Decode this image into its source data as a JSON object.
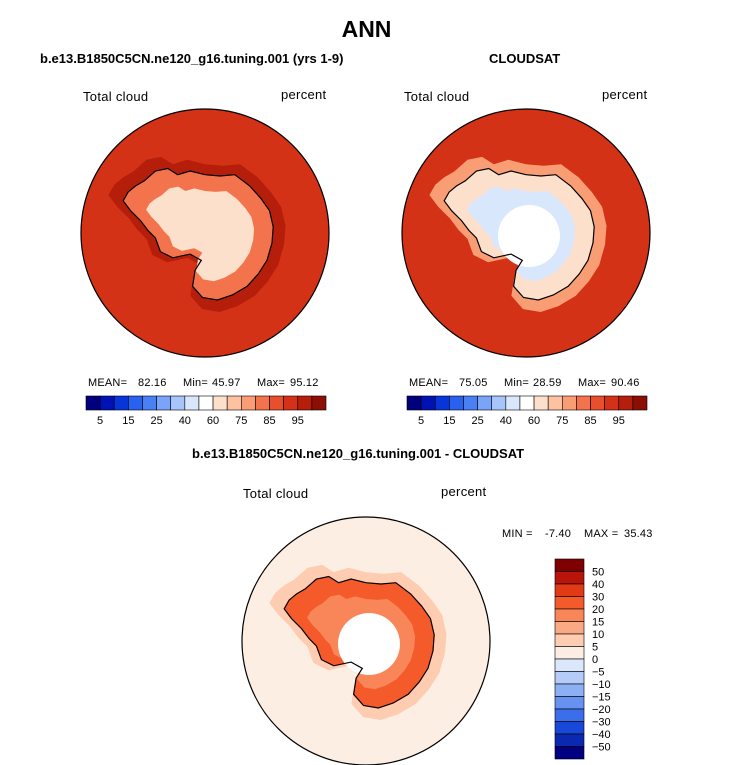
{
  "chart_data": {
    "type": "heatmap",
    "main_title": "ANN",
    "diff_title": "b.e13.B1850C5CN.ne120_g16.tuning.001 - CLOUDSAT",
    "panels": [
      {
        "id": "model",
        "title": "b.e13.B1850C5CN.ne120_g16.tuning.001 (yrs 1-9)",
        "variable": "Total cloud",
        "units": "percent",
        "mean_label": "MEAN=",
        "mean": "82.16",
        "min_label": "Min=",
        "min": "45.97",
        "max_label": "Max=",
        "max": "95.12",
        "ocean_value": 85,
        "coast_value": 90,
        "interior_value": 62,
        "has_pole_hole": false
      },
      {
        "id": "obs",
        "title": "CLOUDSAT",
        "variable": "Total cloud",
        "units": "percent",
        "mean_label": "MEAN=",
        "mean": "75.05",
        "min_label": "Min=",
        "min": "28.59",
        "max_label": "Max=",
        "max": "90.46",
        "ocean_value": 85,
        "coast_value": 80,
        "interior_value": 45,
        "has_pole_hole": true
      }
    ],
    "difference": {
      "variable": "Total cloud",
      "units": "percent",
      "min_label": "MIN =",
      "min": "-7.40",
      "max_label": "MAX =",
      "max": "35.43",
      "ocean_value": 3,
      "ring_value": 8,
      "coast_value": 22,
      "has_pole_hole": true
    },
    "colorbar_levels": [
      "5",
      "15",
      "25",
      "40",
      "60",
      "75",
      "85",
      "95"
    ],
    "colorbar_colors": [
      "#00007f",
      "#0011b5",
      "#0735d9",
      "#2a62f0",
      "#4b80f5",
      "#7aa4f8",
      "#a7c4fb",
      "#d9e7fc",
      "#ffffff",
      "#fde0cc",
      "#fcc2a2",
      "#f99e74",
      "#f3744c",
      "#e84f2c",
      "#d33216",
      "#b41e0b",
      "#8c0f04"
    ],
    "diff_colorbar_levels": [
      "50",
      "40",
      "30",
      "20",
      "15",
      "10",
      "5",
      "0",
      "-5",
      "-10",
      "-15",
      "-20",
      "-30",
      "-40",
      "-50"
    ],
    "diff_colorbar_colors": [
      "#7f0000",
      "#b8140a",
      "#e13a14",
      "#f55a2b",
      "#f88659",
      "#fba984",
      "#fdccb1",
      "#fdeee3",
      "#dbe8fb",
      "#b4ccf7",
      "#8db0f4",
      "#6792f0",
      "#3b6eeb",
      "#1848d8",
      "#0a28b0",
      "#000080"
    ]
  }
}
